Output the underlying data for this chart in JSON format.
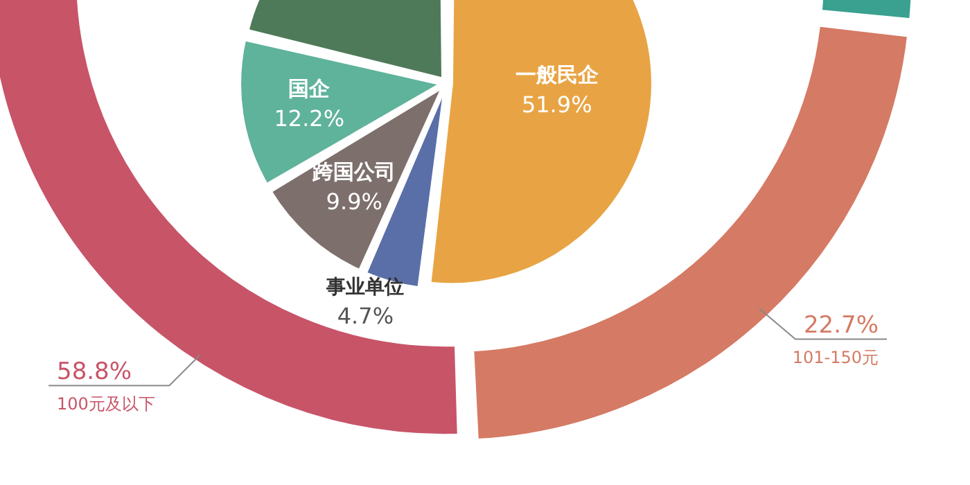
{
  "chart_data": [
    {
      "type": "pie",
      "categories": [
        "一般民企",
        "事业单位",
        "跨国公司",
        "国企",
        null
      ],
      "values": [
        51.9,
        4.7,
        9.9,
        12.2,
        21.3
      ],
      "value_labels": [
        "51.9%",
        "4.7%",
        "9.9%",
        "12.2%",
        null
      ],
      "colors": [
        "#e8a444",
        "#5a6fa8",
        "#7d706c",
        "#5fb39a",
        "#4f7a5a"
      ]
    },
    {
      "type": "donut",
      "categories": [
        "100元及以下",
        null,
        "101-150元"
      ],
      "values": [
        58.8,
        18.5,
        22.7
      ],
      "value_labels": [
        "58.8%",
        null,
        "22.7%"
      ],
      "colors": [
        "#c85468",
        "#3aa090",
        "#d57a64"
      ]
    }
  ]
}
